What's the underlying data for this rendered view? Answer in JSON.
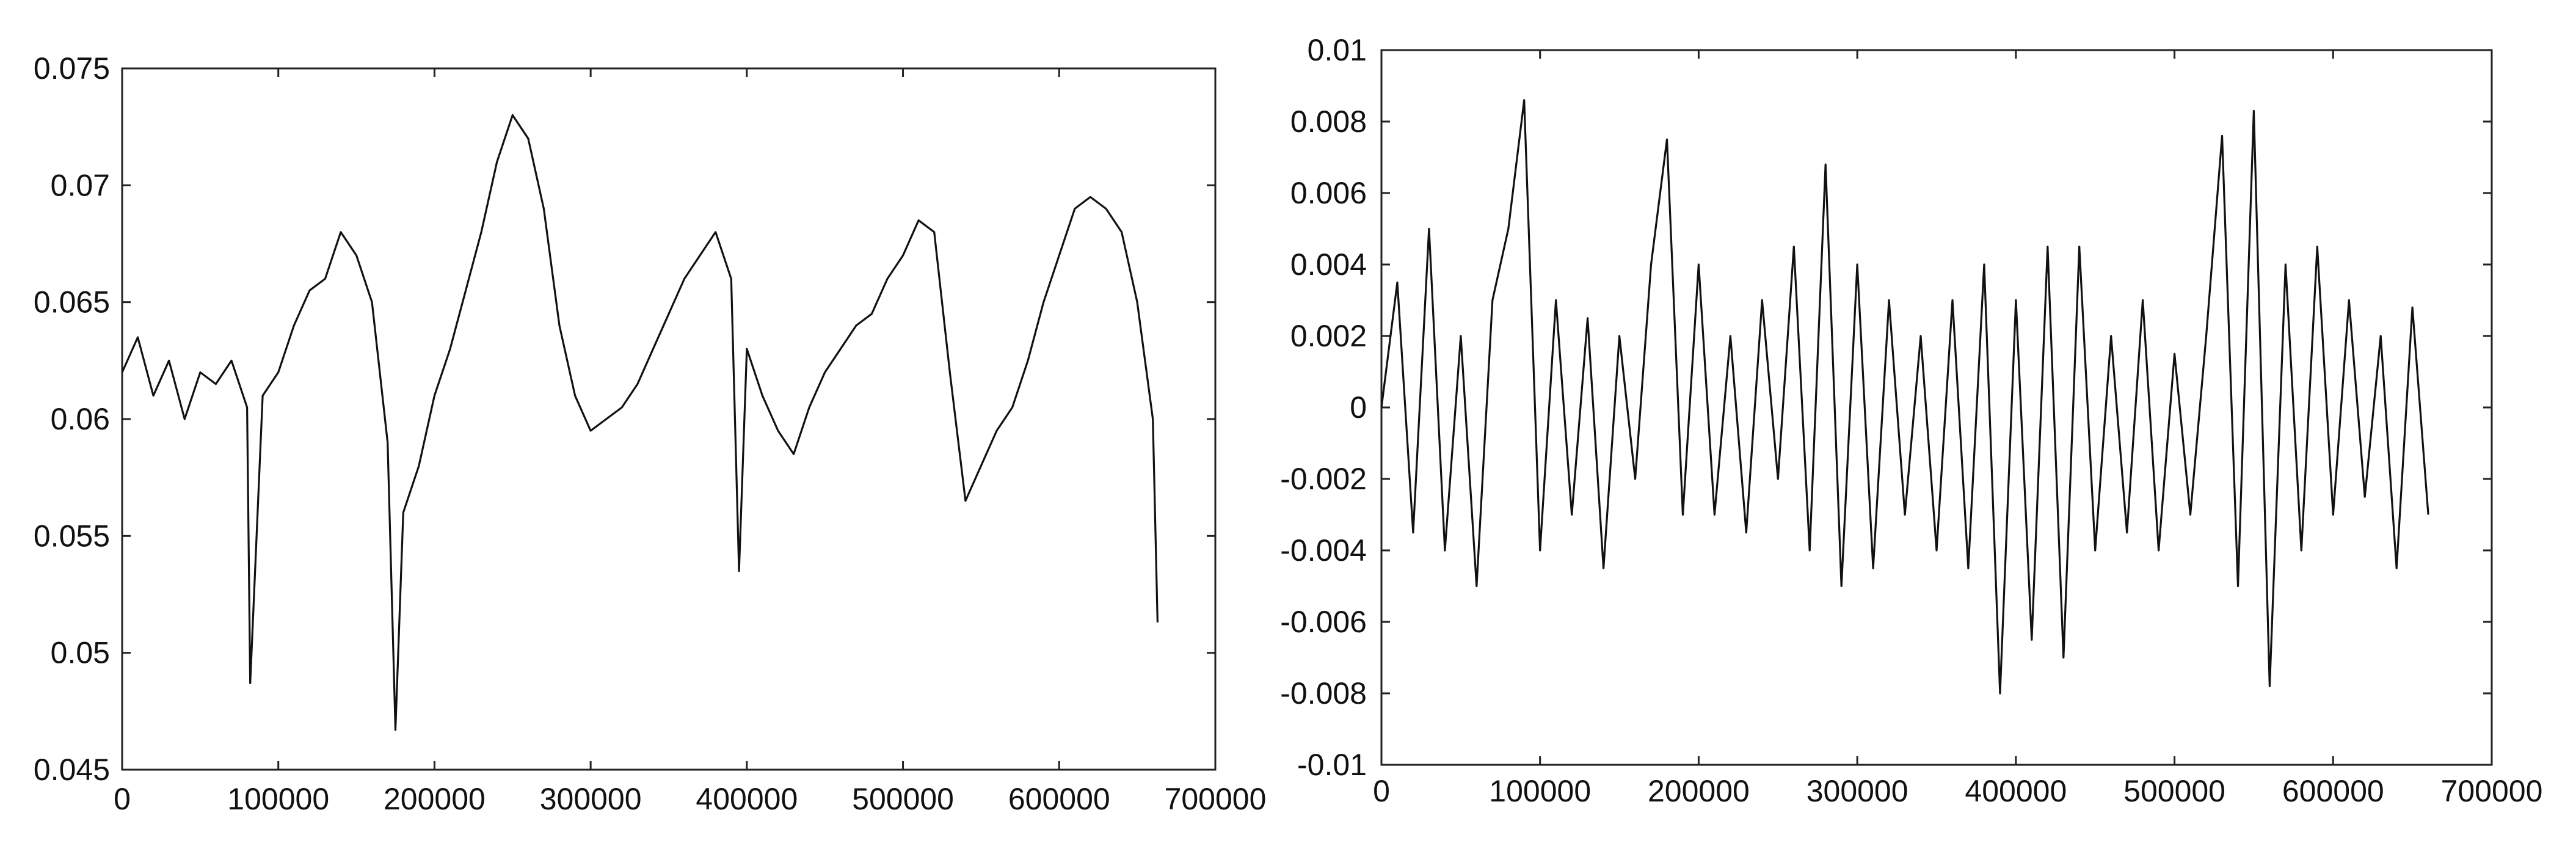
{
  "colors": {
    "background": "#ffffff",
    "axis": "#222222",
    "line": "#111111"
  },
  "chart_data": [
    {
      "type": "line",
      "title": "",
      "xlabel": "",
      "ylabel": "",
      "xlim": [
        0,
        700000
      ],
      "ylim": [
        0.045,
        0.075
      ],
      "grid": false,
      "xticks": [
        0,
        100000,
        200000,
        300000,
        400000,
        500000,
        600000,
        700000
      ],
      "xtick_labels": [
        "0",
        "100000",
        "200000",
        "300000",
        "400000",
        "500000",
        "600000",
        "700000"
      ],
      "yticks": [
        0.045,
        0.05,
        0.055,
        0.06,
        0.065,
        0.07,
        0.075
      ],
      "ytick_labels": [
        "0.045",
        "0.05",
        "0.055",
        "0.06",
        "0.065",
        "0.07",
        "0.075"
      ],
      "series": [
        {
          "x": [
            0,
            10000,
            20000,
            30000,
            40000,
            50000,
            60000,
            70000,
            80000,
            82000,
            90000,
            100000,
            110000,
            120000,
            130000,
            140000,
            150000,
            160000,
            170000,
            175000,
            180000,
            190000,
            200000,
            210000,
            220000,
            230000,
            240000,
            250000,
            260000,
            270000,
            280000,
            290000,
            300000,
            310000,
            320000,
            330000,
            340000,
            350000,
            360000,
            370000,
            380000,
            390000,
            395000,
            400000,
            410000,
            420000,
            430000,
            440000,
            450000,
            460000,
            470000,
            480000,
            490000,
            500000,
            510000,
            520000,
            530000,
            540000,
            550000,
            560000,
            570000,
            580000,
            590000,
            600000,
            610000,
            620000,
            630000,
            640000,
            650000,
            660000,
            663000
          ],
          "values": [
            0.062,
            0.0635,
            0.061,
            0.0625,
            0.06,
            0.062,
            0.0615,
            0.0625,
            0.0605,
            0.0487,
            0.061,
            0.062,
            0.064,
            0.0655,
            0.066,
            0.068,
            0.067,
            0.065,
            0.059,
            0.0467,
            0.056,
            0.058,
            0.061,
            0.063,
            0.0655,
            0.068,
            0.071,
            0.073,
            0.072,
            0.069,
            0.064,
            0.061,
            0.0595,
            0.06,
            0.0605,
            0.0615,
            0.063,
            0.0645,
            0.066,
            0.067,
            0.068,
            0.066,
            0.0535,
            0.063,
            0.061,
            0.0595,
            0.0585,
            0.0605,
            0.062,
            0.063,
            0.064,
            0.0645,
            0.066,
            0.067,
            0.0685,
            0.068,
            0.062,
            0.0565,
            0.058,
            0.0595,
            0.0605,
            0.0625,
            0.065,
            0.067,
            0.069,
            0.0695,
            0.069,
            0.068,
            0.065,
            0.06,
            0.0513
          ]
        }
      ]
    },
    {
      "type": "line",
      "title": "",
      "xlabel": "",
      "ylabel": "",
      "xlim": [
        0,
        700000
      ],
      "ylim": [
        -0.01,
        0.01
      ],
      "grid": false,
      "xticks": [
        0,
        100000,
        200000,
        300000,
        400000,
        500000,
        600000,
        700000
      ],
      "xtick_labels": [
        "0",
        "100000",
        "200000",
        "300000",
        "400000",
        "500000",
        "600000",
        "700000"
      ],
      "yticks": [
        -0.01,
        -0.008,
        -0.006,
        -0.004,
        -0.002,
        0,
        0.002,
        0.004,
        0.006,
        0.008,
        0.01
      ],
      "ytick_labels": [
        "-0.01",
        "-0.008",
        "-0.006",
        "-0.004",
        "-0.002",
        "0",
        "0.002",
        "0.004",
        "0.006",
        "0.008",
        "0.01"
      ],
      "series": [
        {
          "x": [
            0,
            10000,
            20000,
            30000,
            40000,
            50000,
            60000,
            70000,
            80000,
            90000,
            100000,
            110000,
            120000,
            130000,
            140000,
            150000,
            160000,
            170000,
            180000,
            190000,
            200000,
            210000,
            220000,
            230000,
            240000,
            250000,
            260000,
            270000,
            280000,
            290000,
            300000,
            310000,
            320000,
            330000,
            340000,
            350000,
            360000,
            370000,
            380000,
            390000,
            400000,
            410000,
            420000,
            430000,
            440000,
            450000,
            460000,
            470000,
            480000,
            490000,
            500000,
            510000,
            520000,
            530000,
            540000,
            550000,
            560000,
            570000,
            580000,
            590000,
            600000,
            610000,
            620000,
            630000,
            640000,
            650000,
            660000
          ],
          "values": [
            0,
            0.0035,
            -0.0035,
            0.005,
            -0.004,
            0.002,
            -0.005,
            0.003,
            0.005,
            0.0086,
            -0.004,
            0.003,
            -0.003,
            0.0025,
            -0.0045,
            0.002,
            -0.002,
            0.004,
            0.0075,
            -0.003,
            0.004,
            -0.003,
            0.002,
            -0.0035,
            0.003,
            -0.002,
            0.0045,
            -0.004,
            0.0068,
            -0.005,
            0.004,
            -0.0045,
            0.003,
            -0.003,
            0.002,
            -0.004,
            0.003,
            -0.0045,
            0.004,
            -0.008,
            0.003,
            -0.0065,
            0.0045,
            -0.007,
            0.0045,
            -0.004,
            0.002,
            -0.0035,
            0.003,
            -0.004,
            0.0015,
            -0.003,
            0.002,
            0.0076,
            -0.005,
            0.0083,
            -0.0078,
            0.004,
            -0.004,
            0.0045,
            -0.003,
            0.003,
            -0.0025,
            0.002,
            -0.0045,
            0.0028,
            -0.003
          ]
        }
      ]
    }
  ]
}
